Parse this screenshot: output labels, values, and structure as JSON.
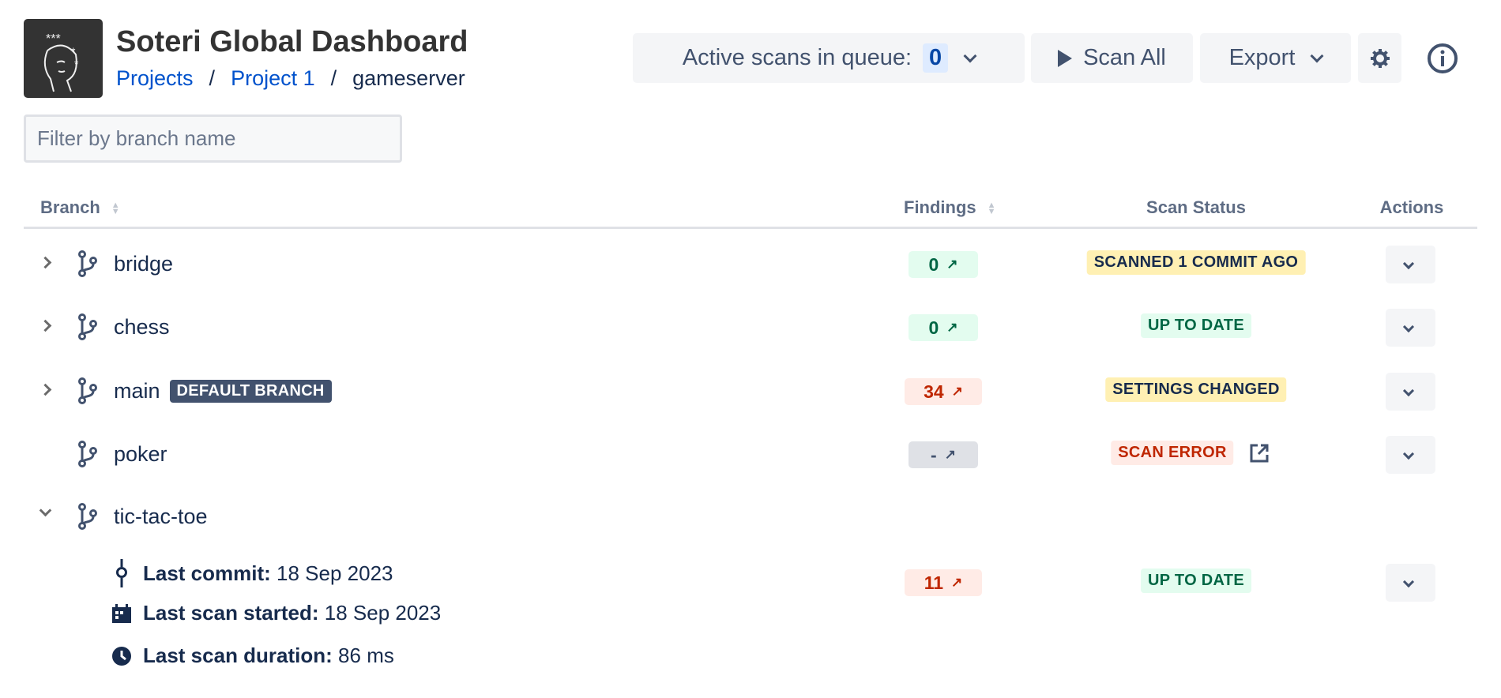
{
  "header": {
    "title": "Soteri Global Dashboard",
    "breadcrumb": [
      "Projects",
      "Project 1",
      "gameserver"
    ],
    "breadcrumb_separator": "/"
  },
  "toolbar": {
    "queue_label": "Active scans in queue:",
    "queue_count": "0",
    "scan_all_label": "Scan All",
    "export_label": "Export",
    "settings_icon": "gear-icon",
    "info_icon": "info-icon"
  },
  "filter": {
    "placeholder": "Filter by branch name",
    "value": ""
  },
  "table": {
    "headers": {
      "branch": "Branch",
      "findings": "Findings",
      "status": "Scan Status",
      "actions": "Actions"
    },
    "rows": [
      {
        "name": "bridge",
        "expand": "collapsed",
        "findings": "0",
        "findings_tone": "green",
        "status": "SCANNED 1 COMMIT AGO",
        "status_tone": "yellow"
      },
      {
        "name": "chess",
        "expand": "collapsed",
        "findings": "0",
        "findings_tone": "green",
        "status": "UP TO DATE",
        "status_tone": "green"
      },
      {
        "name": "main",
        "badge": "DEFAULT BRANCH",
        "expand": "collapsed",
        "findings": "34",
        "findings_tone": "red",
        "status": "SETTINGS CHANGED",
        "status_tone": "yellow"
      },
      {
        "name": "poker",
        "expand": "none",
        "findings": "-",
        "findings_tone": "grey",
        "status": "SCAN ERROR",
        "status_tone": "red",
        "external_link": true
      },
      {
        "name": "tic-tac-toe",
        "expand": "expanded",
        "findings": "11",
        "findings_tone": "red",
        "status": "UP TO DATE",
        "status_tone": "green",
        "details": [
          {
            "icon": "commit-icon",
            "label": "Last commit:",
            "value": "18 Sep 2023"
          },
          {
            "icon": "calendar-icon",
            "label": "Last scan started:",
            "value": "18 Sep 2023"
          },
          {
            "icon": "clock-icon",
            "label": "Last scan duration:",
            "value": "86 ms"
          }
        ]
      }
    ]
  },
  "colors": {
    "link": "#0052cc",
    "text": "#172b4d",
    "green_bg": "#e3fcef",
    "green_fg": "#006644",
    "red_bg": "#ffebe6",
    "red_fg": "#bf2600",
    "yellow_bg": "#fff0b3",
    "grey_bg": "#dfe1e6",
    "grey_fg": "#42526e"
  }
}
